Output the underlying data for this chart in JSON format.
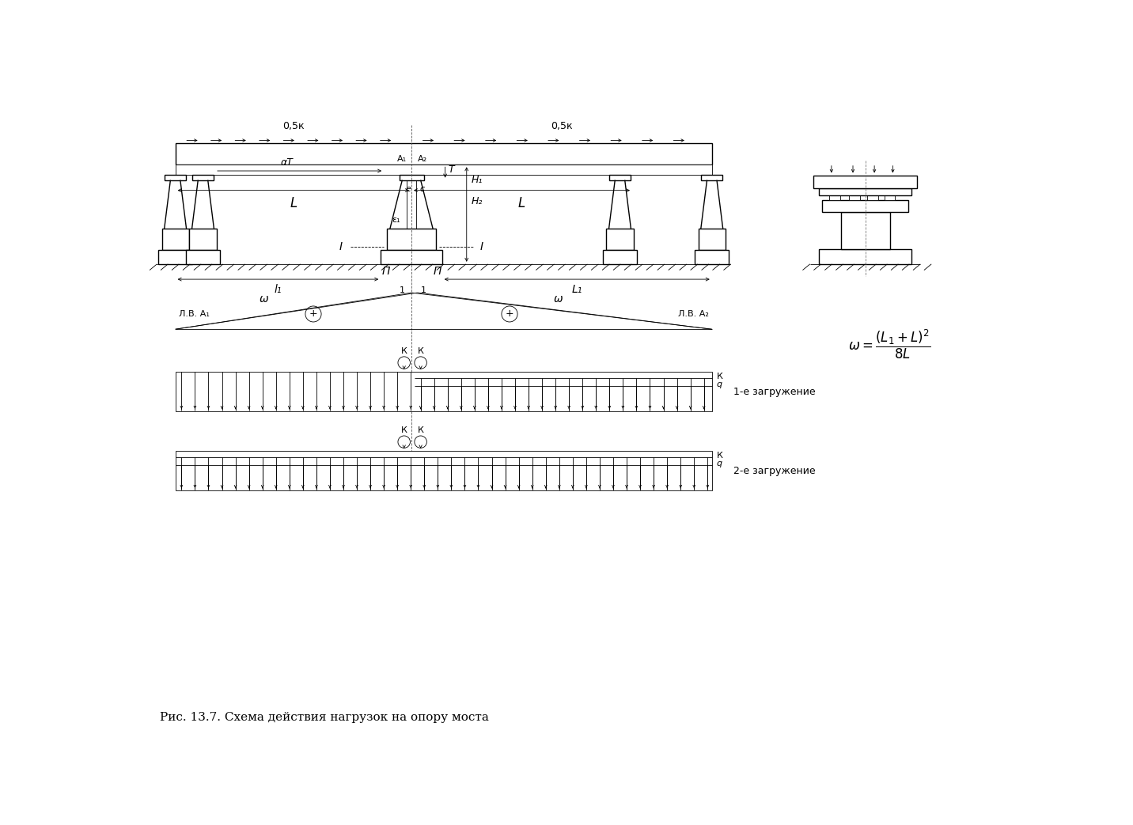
{
  "bg_color": "#ffffff",
  "line_color": "#000000",
  "fig_width": 14.32,
  "fig_height": 10.43,
  "caption": "Рис. 13.7. Схема действия нагрузок на опору моста",
  "label_05k_left": "0,5к",
  "label_05k_right": "0,5к",
  "label_alphaT": "αT",
  "label_T": "T",
  "label_A1": "A₁",
  "label_A2": "A₂",
  "label_H1": "H₁",
  "label_H2": "H₂",
  "label_e1": "ε₁",
  "label_e": "e",
  "label_c": "c",
  "label_L_left": "L",
  "label_L_right": "L",
  "label_l1_left": "l₁",
  "label_l1_right": "L₁",
  "label_lbA1": "Л.В. A₁",
  "label_lbA2": "Л.В. A₂",
  "label_1e_zagruz": "1-е загружение",
  "label_2e_zagruz": "2-е загружение"
}
